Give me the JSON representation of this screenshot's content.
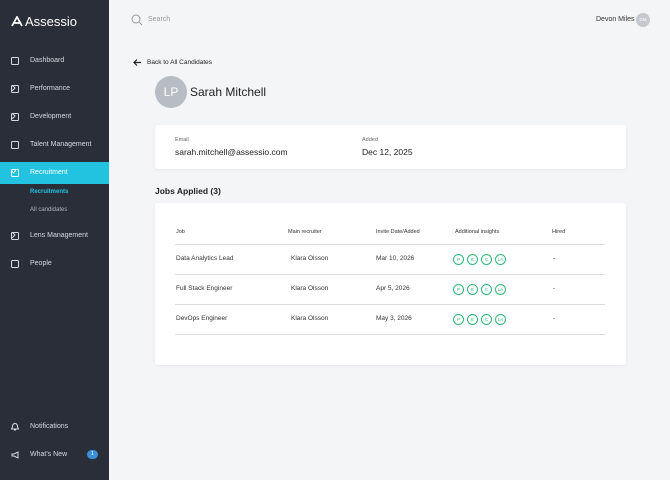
{
  "sidebar": {
    "logo": "Assessio",
    "nav": [
      "Dashboard",
      "Performance",
      "Development",
      "Talent Management",
      "Recruitment",
      "Lens Management",
      "People"
    ],
    "subnav": [
      "Recruitments",
      "All candidates"
    ],
    "bottom": [
      "Notifications",
      "What's New"
    ],
    "badge": 1
  },
  "topbar": {
    "search": "Search",
    "user": "Devon Miles",
    "user_initials": "DM"
  },
  "back_link": "Back to All Candidates",
  "candidate": {
    "initials": "LP",
    "name": "Sarah Mitchell",
    "email_label": "Email",
    "email": "sarah.mitchell@assessio.com",
    "added_label": "Added",
    "added": "Dec 12, 2025"
  },
  "jobs": {
    "title": "Jobs Applied (3)",
    "headers": [
      "Job",
      "Main recruiter",
      "Invite Date/Added",
      "Additional insights",
      "Hired"
    ],
    "rows": [
      {
        "job": "Data Analytics Lead",
        "recruiter": "Klara Olsson",
        "date": "Mar 10, 2026",
        "insights": [
          "P",
          "E",
          "C",
          "LA"
        ],
        "hired": "-"
      },
      {
        "job": "Full Stack Engineer",
        "recruiter": "Klara Olsson",
        "date": "Apr 5, 2026",
        "insights": [
          "P",
          "E",
          "C",
          "LA"
        ],
        "hired": "-"
      },
      {
        "job": "DevOps Engineer",
        "recruiter": "Klara Olsson",
        "date": "May 3, 2026",
        "insights": [
          "P",
          "E",
          "C",
          "LA"
        ],
        "hired": "-"
      }
    ]
  }
}
